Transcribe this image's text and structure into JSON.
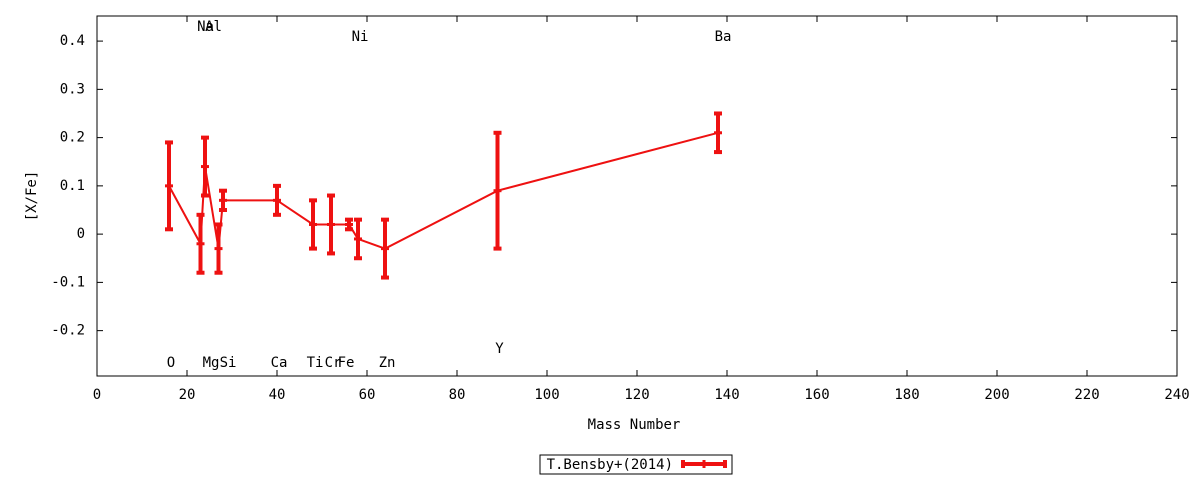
{
  "chart_data": {
    "type": "line",
    "x_label": "Mass Number",
    "y_label": "[X/Fe]",
    "xlim": [
      0,
      240
    ],
    "xticks": [
      0,
      20,
      40,
      60,
      80,
      100,
      120,
      140,
      160,
      180,
      200,
      220,
      240
    ],
    "ylim": [
      -0.294,
      0.452
    ],
    "yticks": [
      -0.2,
      -0.1,
      0,
      0.1,
      0.2,
      0.3,
      0.4
    ],
    "x": [
      16,
      23,
      24,
      27,
      28,
      40,
      48,
      52,
      56,
      58,
      64,
      89,
      138
    ],
    "point_labels": [
      "O",
      "Na",
      "Mg",
      "Al",
      "Si",
      "Ca",
      "Ti",
      "Cr",
      "Fe",
      "Ni",
      "Zn",
      "Y",
      "Ba"
    ],
    "legend_position": "bottom center",
    "series": [
      {
        "name": "T.Bensby+(2014)",
        "color": "#ee1111",
        "values": [
          0.1,
          -0.02,
          0.14,
          -0.03,
          0.07,
          0.07,
          0.02,
          0.02,
          0.02,
          -0.01,
          -0.03,
          0.09,
          0.21
        ],
        "errors": [
          0.09,
          0.06,
          0.06,
          0.05,
          0.02,
          0.03,
          0.05,
          0.06,
          0.01,
          0.04,
          0.06,
          0.12,
          0.04
        ]
      }
    ]
  }
}
